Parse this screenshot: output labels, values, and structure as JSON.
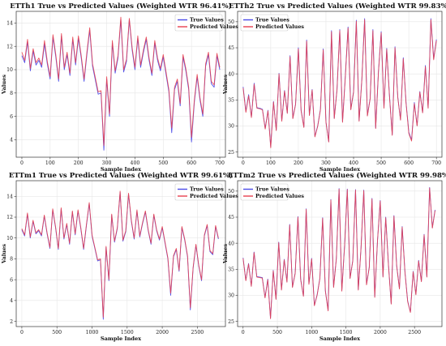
{
  "colors": {
    "true_series": "#4a4ae8",
    "pred_series": "#e8404f",
    "grid": "#e6e6e6"
  },
  "chart_data": [
    {
      "type": "line",
      "title": "ETTh1 True vs Predicted Values (Weighted WTR 96.41%)",
      "xlabel": "Sample Index",
      "ylabel": "Values",
      "xlim": [
        -20,
        720
      ],
      "ylim": [
        2.5,
        15
      ],
      "xticks": [
        0,
        100,
        200,
        300,
        400,
        500,
        600,
        700
      ],
      "yticks": [
        4,
        6,
        8,
        10,
        12,
        14
      ],
      "legend": "top-right",
      "grid": true,
      "x": [
        0,
        10,
        20,
        30,
        40,
        50,
        60,
        70,
        80,
        90,
        100,
        110,
        120,
        130,
        140,
        150,
        160,
        170,
        180,
        190,
        200,
        210,
        220,
        230,
        240,
        250,
        260,
        270,
        280,
        290,
        300,
        310,
        320,
        330,
        340,
        350,
        360,
        370,
        380,
        390,
        400,
        410,
        420,
        430,
        440,
        450,
        460,
        470,
        480,
        490,
        500,
        510,
        520,
        530,
        540,
        550,
        560,
        570,
        580,
        590,
        600,
        610,
        620,
        630,
        640,
        650,
        660,
        670,
        680,
        690,
        700
      ],
      "series": [
        {
          "name": "True Values",
          "values": [
            11.2,
            10.6,
            12.4,
            9.9,
            11.6,
            10.4,
            10.8,
            10.2,
            12.2,
            10.5,
            9.2,
            12.8,
            11.1,
            9.0,
            12.9,
            10.0,
            11.3,
            9.5,
            12.6,
            10.4,
            12.7,
            11.0,
            9.0,
            11.3,
            13.4,
            10.3,
            9.1,
            7.9,
            8.0,
            3.1,
            9.2,
            6.0,
            12.3,
            9.7,
            11.0,
            14.3,
            9.8,
            10.7,
            14.3,
            11.7,
            10.0,
            12.7,
            10.2,
            11.5,
            12.6,
            10.8,
            9.5,
            12.3,
            10.8,
            9.9,
            11.1,
            9.6,
            8.1,
            4.6,
            8.3,
            9.0,
            6.9,
            11.1,
            9.9,
            8.3,
            3.8,
            7.2,
            9.4,
            7.4,
            6.0,
            10.3,
            11.3,
            8.8,
            8.5,
            11.2,
            10.0
          ]
        },
        {
          "name": "Predicted Values",
          "values": [
            11.5,
            10.8,
            12.6,
            10.1,
            11.8,
            10.6,
            11.0,
            10.4,
            12.5,
            10.7,
            9.4,
            13.0,
            11.3,
            9.2,
            13.1,
            10.2,
            11.5,
            9.7,
            12.8,
            10.6,
            12.9,
            11.2,
            9.2,
            11.5,
            13.6,
            10.5,
            9.3,
            8.1,
            8.2,
            3.5,
            9.4,
            6.2,
            12.5,
            9.9,
            11.2,
            14.5,
            10.0,
            10.9,
            14.4,
            11.9,
            10.2,
            12.9,
            10.4,
            11.7,
            12.8,
            11.0,
            9.7,
            12.5,
            11.0,
            10.1,
            11.3,
            9.8,
            8.3,
            5.0,
            8.5,
            9.2,
            7.1,
            11.3,
            10.1,
            8.5,
            4.2,
            7.4,
            9.6,
            7.6,
            6.2,
            10.5,
            11.5,
            9.0,
            8.7,
            11.4,
            10.2
          ]
        }
      ]
    },
    {
      "type": "line",
      "title": "ETTh2 True vs Predicted Values (Weighted WTR 99.83%)",
      "xlabel": "Sample Index",
      "ylabel": "Values",
      "xlim": [
        -20,
        720
      ],
      "ylim": [
        24,
        52
      ],
      "xticks": [
        0,
        100,
        200,
        300,
        400,
        500,
        600,
        700
      ],
      "yticks": [
        25,
        30,
        35,
        40,
        45,
        50
      ],
      "legend": "top-left",
      "grid": true,
      "x": [
        0,
        10,
        20,
        30,
        40,
        50,
        60,
        70,
        80,
        90,
        100,
        110,
        120,
        130,
        140,
        150,
        160,
        170,
        180,
        190,
        200,
        210,
        220,
        230,
        240,
        250,
        260,
        270,
        280,
        290,
        300,
        310,
        320,
        330,
        340,
        350,
        360,
        370,
        380,
        390,
        400,
        410,
        420,
        430,
        440,
        450,
        460,
        470,
        480,
        490,
        500,
        510,
        520,
        530,
        540,
        550,
        560,
        570,
        580,
        590,
        600,
        610,
        620,
        630,
        640,
        650,
        660,
        670,
        680,
        690,
        700
      ],
      "series": [
        {
          "name": "True Values",
          "values": [
            37.5,
            32.8,
            36.0,
            31.7,
            38.2,
            33.5,
            33.4,
            33.2,
            29.5,
            33.0,
            26.0,
            34.7,
            29.2,
            40.1,
            31.0,
            36.8,
            32.5,
            43.5,
            31.5,
            34.2,
            45.0,
            33.0,
            29.8,
            46.5,
            32.1,
            37.0,
            28.0,
            30.0,
            33.2,
            44.8,
            30.8,
            27.0,
            48.3,
            31.5,
            37.0,
            48.5,
            30.8,
            39.5,
            49.0,
            33.2,
            36.6,
            50.3,
            31.0,
            39.0,
            50.6,
            32.0,
            35.3,
            48.5,
            29.6,
            40.4,
            48.1,
            33.5,
            44.9,
            35.8,
            28.3,
            45.2,
            35.6,
            31.2,
            43.1,
            34.5,
            28.8,
            27.3,
            34.5,
            30.1,
            36.6,
            32.6,
            41.6,
            33.5,
            50.6,
            42.9,
            46.6
          ]
        },
        {
          "name": "Predicted Values",
          "values": [
            37.3,
            32.6,
            35.8,
            31.6,
            38.0,
            33.4,
            33.3,
            33.1,
            29.4,
            32.9,
            25.8,
            34.6,
            29.1,
            40.0,
            30.9,
            36.7,
            32.4,
            43.3,
            31.4,
            34.1,
            44.8,
            32.9,
            29.7,
            46.3,
            32.0,
            36.9,
            27.9,
            29.9,
            33.1,
            44.6,
            30.7,
            26.9,
            48.1,
            31.4,
            36.9,
            48.3,
            30.7,
            39.3,
            48.8,
            33.1,
            36.5,
            50.1,
            30.9,
            38.9,
            50.4,
            31.9,
            35.2,
            48.3,
            29.5,
            40.3,
            47.9,
            33.4,
            44.7,
            35.7,
            28.2,
            45.0,
            35.5,
            31.1,
            42.9,
            34.4,
            28.6,
            27.1,
            34.3,
            30.0,
            36.5,
            32.5,
            41.4,
            33.4,
            50.4,
            42.7,
            46.4
          ]
        }
      ]
    },
    {
      "type": "line",
      "title": "ETTm1 True vs Predicted Values (Weighted WTR 99.61%)",
      "xlabel": "Sample Index",
      "ylabel": "Values",
      "xlim": [
        -80,
        2900
      ],
      "ylim": [
        1.5,
        15.5
      ],
      "xticks": [
        0,
        500,
        1000,
        1500,
        2000,
        2500
      ],
      "yticks": [
        2,
        4,
        6,
        8,
        10,
        12,
        14
      ],
      "legend": "top-right",
      "grid": true,
      "x": [
        0,
        40,
        80,
        120,
        160,
        200,
        240,
        280,
        320,
        360,
        400,
        440,
        480,
        520,
        560,
        600,
        640,
        680,
        720,
        760,
        800,
        840,
        880,
        920,
        960,
        1000,
        1040,
        1080,
        1120,
        1160,
        1200,
        1240,
        1280,
        1320,
        1360,
        1400,
        1440,
        1480,
        1520,
        1560,
        1600,
        1640,
        1680,
        1720,
        1760,
        1800,
        1840,
        1880,
        1920,
        1960,
        2000,
        2040,
        2080,
        2120,
        2160,
        2200,
        2240,
        2280,
        2320,
        2360,
        2400,
        2440,
        2480,
        2520,
        2560,
        2600,
        2640,
        2680,
        2720,
        2760,
        2800
      ],
      "series": [
        {
          "name": "True Values",
          "values": [
            10.8,
            10.2,
            12.3,
            10.0,
            11.6,
            10.4,
            10.7,
            10.2,
            12.1,
            10.4,
            9.0,
            12.7,
            11.0,
            8.9,
            12.8,
            9.9,
            11.3,
            9.4,
            12.5,
            10.3,
            12.6,
            10.9,
            8.9,
            11.2,
            13.3,
            10.2,
            9.0,
            7.8,
            7.9,
            2.2,
            9.1,
            5.9,
            12.2,
            9.6,
            10.9,
            14.4,
            9.7,
            10.6,
            14.2,
            11.6,
            9.9,
            12.6,
            10.1,
            11.4,
            12.5,
            10.7,
            9.4,
            12.2,
            10.7,
            9.8,
            11.0,
            9.5,
            8.0,
            4.5,
            8.2,
            8.9,
            6.8,
            11.0,
            9.8,
            8.2,
            3.1,
            7.1,
            9.3,
            7.3,
            5.9,
            10.2,
            11.2,
            8.7,
            8.4,
            11.1,
            9.9
          ]
        },
        {
          "name": "Predicted Values",
          "values": [
            10.9,
            10.3,
            12.4,
            10.1,
            11.7,
            10.5,
            10.8,
            10.3,
            12.2,
            10.5,
            9.1,
            12.8,
            11.1,
            9.0,
            12.9,
            10.0,
            11.4,
            9.5,
            12.6,
            10.4,
            12.7,
            11.0,
            9.0,
            11.3,
            13.4,
            10.3,
            9.1,
            7.9,
            8.0,
            2.4,
            9.2,
            6.0,
            12.3,
            9.7,
            11.0,
            14.5,
            9.8,
            10.7,
            14.3,
            11.7,
            10.0,
            12.7,
            10.2,
            11.5,
            12.6,
            10.8,
            9.5,
            12.3,
            10.8,
            9.9,
            11.1,
            9.6,
            8.1,
            4.7,
            8.3,
            9.0,
            6.9,
            11.1,
            9.9,
            8.3,
            3.3,
            7.2,
            9.4,
            7.4,
            6.0,
            10.3,
            11.3,
            8.8,
            8.5,
            11.2,
            10.0
          ]
        }
      ]
    },
    {
      "type": "line",
      "title": "ETTm2 True vs Predicted Values (Weighted WTR 99.98%)",
      "xlabel": "Sample Index",
      "ylabel": "Values",
      "xlim": [
        -80,
        2900
      ],
      "ylim": [
        24,
        52
      ],
      "xticks": [
        0,
        500,
        1000,
        1500,
        2000,
        2500
      ],
      "yticks": [
        25,
        30,
        35,
        40,
        45,
        50
      ],
      "legend": "top-left",
      "grid": true,
      "x": [
        0,
        40,
        80,
        120,
        160,
        200,
        240,
        280,
        320,
        360,
        400,
        440,
        480,
        520,
        560,
        600,
        640,
        680,
        720,
        760,
        800,
        840,
        880,
        920,
        960,
        1000,
        1040,
        1080,
        1120,
        1160,
        1200,
        1240,
        1280,
        1320,
        1360,
        1400,
        1440,
        1480,
        1520,
        1560,
        1600,
        1640,
        1680,
        1720,
        1760,
        1800,
        1840,
        1880,
        1920,
        1960,
        2000,
        2040,
        2080,
        2120,
        2160,
        2200,
        2240,
        2280,
        2320,
        2360,
        2400,
        2440,
        2480,
        2520,
        2560,
        2600,
        2640,
        2680,
        2720,
        2760,
        2800
      ],
      "series": [
        {
          "name": "True Values",
          "values": [
            37.2,
            32.9,
            36.1,
            31.8,
            38.3,
            33.6,
            33.5,
            33.4,
            29.6,
            33.1,
            25.6,
            34.8,
            29.3,
            40.2,
            31.1,
            36.9,
            32.6,
            43.6,
            31.6,
            34.3,
            45.1,
            33.1,
            29.9,
            46.6,
            32.2,
            37.1,
            28.1,
            30.1,
            33.3,
            44.9,
            30.9,
            27.1,
            48.4,
            31.6,
            37.1,
            50.5,
            30.9,
            39.6,
            50.4,
            33.3,
            36.7,
            50.3,
            31.1,
            39.1,
            50.2,
            32.1,
            35.4,
            48.6,
            29.7,
            40.5,
            48.2,
            33.6,
            45.0,
            35.9,
            28.4,
            45.3,
            35.7,
            31.3,
            43.2,
            34.6,
            28.9,
            26.8,
            34.6,
            30.2,
            36.7,
            32.7,
            41.7,
            33.6,
            50.7,
            43.0,
            46.4
          ]
        },
        {
          "name": "Predicted Values",
          "values": [
            37.1,
            32.8,
            36.0,
            31.7,
            38.2,
            33.5,
            33.4,
            33.3,
            29.5,
            33.0,
            25.5,
            34.7,
            29.2,
            40.1,
            31.0,
            36.8,
            32.5,
            43.5,
            31.5,
            34.2,
            45.0,
            33.0,
            29.8,
            46.5,
            32.1,
            37.0,
            28.0,
            30.0,
            33.2,
            44.8,
            30.8,
            27.0,
            48.3,
            31.5,
            37.0,
            50.4,
            30.8,
            39.5,
            50.3,
            33.2,
            36.6,
            50.2,
            31.0,
            39.0,
            50.1,
            32.0,
            35.3,
            48.5,
            29.6,
            40.4,
            48.1,
            33.5,
            44.9,
            35.8,
            28.3,
            45.2,
            35.6,
            31.2,
            43.1,
            34.5,
            28.8,
            26.7,
            34.5,
            30.1,
            36.6,
            32.6,
            41.6,
            33.5,
            50.6,
            42.9,
            46.3
          ]
        }
      ]
    }
  ]
}
